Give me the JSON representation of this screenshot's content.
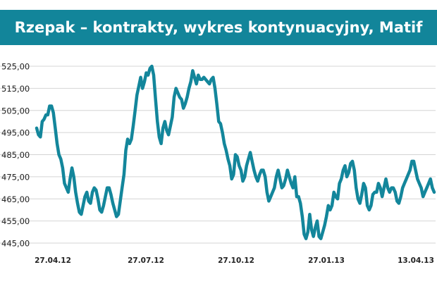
{
  "chart_data": {
    "type": "line",
    "title": "Rzepak – kontrakty, wykres kontynuacyjny, Matif",
    "xlabel": "",
    "ylabel": "",
    "ylim": [
      445,
      525
    ],
    "y_ticks": [
      "525,00",
      "515,00",
      "505,00",
      "495,00",
      "485,00",
      "475,00",
      "465,00",
      "455,00",
      "445,00"
    ],
    "y_tick_values": [
      525,
      515,
      505,
      495,
      485,
      475,
      465,
      455,
      445
    ],
    "x_ticks": [
      "27.04.12",
      "27.07.12",
      "27.10.12",
      "27.01.13",
      "13.04.13"
    ],
    "grid": "horizontal",
    "legend": "none",
    "line_color": "#13869b",
    "series": [
      {
        "values": [
          497,
          494,
          493,
          500,
          501,
          503,
          503,
          507,
          507,
          504,
          497,
          490,
          485,
          483,
          479,
          472,
          470,
          468,
          474,
          479,
          475,
          468,
          463,
          459,
          458,
          462,
          466,
          468,
          464,
          463,
          468,
          470,
          469,
          465,
          460,
          459,
          462,
          466,
          470,
          470,
          467,
          463,
          460,
          457,
          458,
          464,
          470,
          476,
          487,
          492,
          490,
          492,
          498,
          505,
          512,
          516,
          520,
          515,
          518,
          522,
          521,
          524,
          525,
          521,
          510,
          500,
          493,
          490,
          497,
          500,
          496,
          494,
          498,
          502,
          511,
          515,
          513,
          511,
          510,
          506,
          508,
          511,
          515,
          518,
          523,
          520,
          517,
          521,
          519,
          519,
          520,
          519,
          518,
          517,
          519,
          520,
          515,
          508,
          500,
          499,
          495,
          490,
          487,
          483,
          480,
          474,
          476,
          485,
          484,
          480,
          478,
          473,
          475,
          480,
          483,
          486,
          482,
          478,
          475,
          473,
          476,
          478,
          478,
          475,
          468,
          464,
          466,
          468,
          470,
          475,
          478,
          474,
          470,
          471,
          474,
          478,
          475,
          472,
          470,
          475,
          466,
          466,
          463,
          457,
          449,
          447,
          450,
          458,
          451,
          448,
          452,
          455,
          448,
          447,
          450,
          453,
          457,
          462,
          460,
          462,
          468,
          466,
          465,
          472,
          474,
          478,
          480,
          475,
          477,
          481,
          482,
          478,
          470,
          465,
          463,
          467,
          472,
          470,
          462,
          460,
          462,
          467,
          468,
          468,
          472,
          470,
          466,
          470,
          474,
          470,
          468,
          470,
          470,
          468,
          464,
          463,
          466,
          470,
          472,
          474,
          476,
          478,
          482,
          482,
          478,
          474,
          472,
          470,
          466,
          468,
          470,
          472,
          474,
          470,
          468
        ]
      }
    ]
  }
}
